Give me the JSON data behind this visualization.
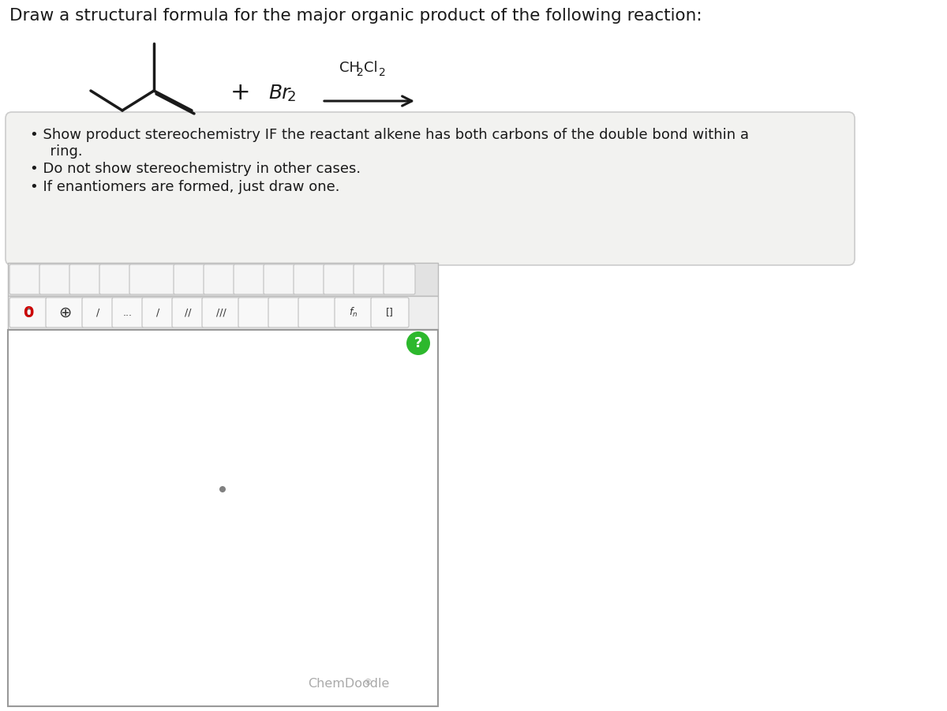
{
  "title": "Draw a structural formula for the major organic product of the following reaction:",
  "title_fontsize": 15.5,
  "title_color": "#1a1a1a",
  "bg_color": "#ffffff",
  "bullet_box_facecolor": "#f2f2f0",
  "bullet_box_edgecolor": "#cccccc",
  "mol_color": "#1a1a1a",
  "mol_lw": 2.5,
  "reagent_br2": "Br",
  "reagent_br2_sub": "2",
  "reagent_solvent": "CH",
  "reagent_solvent_sub1": "2",
  "reagent_solvent_mid": "Cl",
  "reagent_solvent_sub2": "2",
  "plus_sign": "+",
  "chemdoodle_text": "ChemDoodle",
  "chemdoodle_reg": "®",
  "chemdoodle_color": "#aaaaaa",
  "canvas_border": "#999999",
  "canvas_bg": "#ffffff",
  "toolbar1_bg": "#e2e2e2",
  "toolbar2_bg": "#eeeeee",
  "question_mark_color": "#2db82d",
  "question_mark_text": "?",
  "dot_color": "#808080",
  "bullet1_line1": "• Show product stereochemistry IF the reactant alkene has both carbons of the double bond within a",
  "bullet1_line2": "  ring.",
  "bullet2": "• Do not show stereochemistry in other cases.",
  "bullet3": "• If enantiomers are formed, just draw one."
}
